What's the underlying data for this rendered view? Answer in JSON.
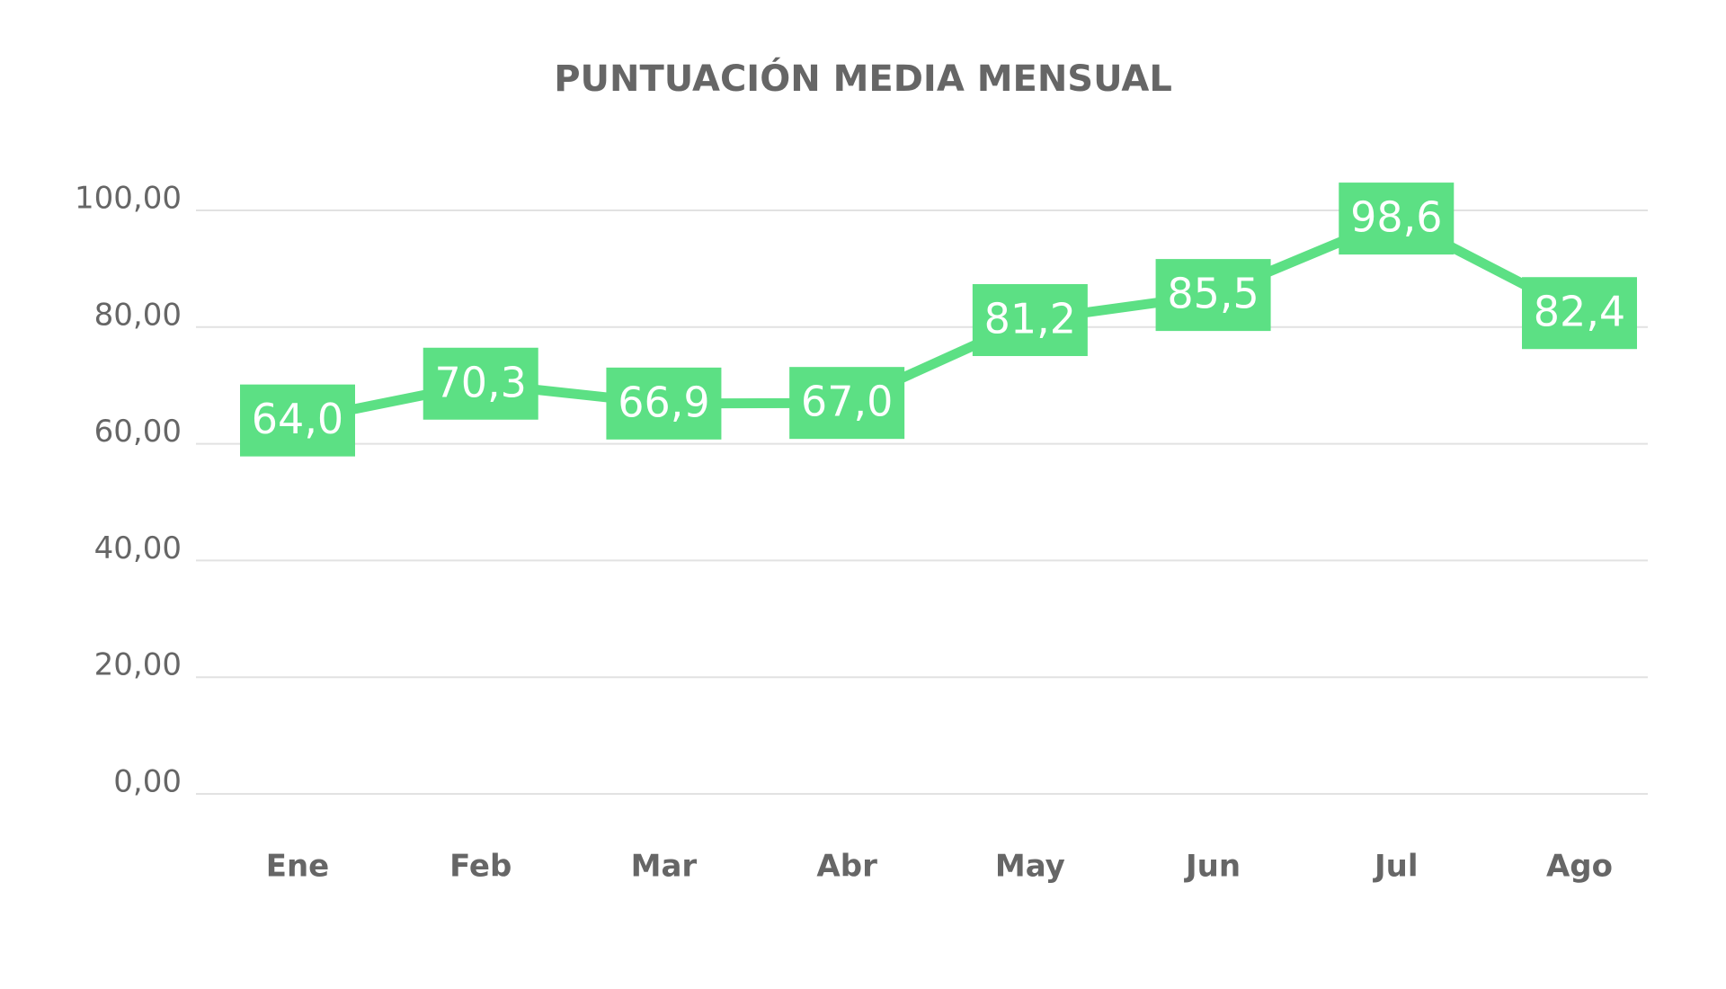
{
  "chart_data": {
    "type": "line",
    "title": "PUNTUACIÓN MEDIA MENSUAL",
    "categories": [
      "Ene",
      "Feb",
      "Mar",
      "Abr",
      "May",
      "Jun",
      "Jul",
      "Ago"
    ],
    "values": [
      64.0,
      70.3,
      66.9,
      67.0,
      81.2,
      85.5,
      98.6,
      82.4
    ],
    "value_labels": [
      "64,0",
      "70,3",
      "66,9",
      "67,0",
      "81,2",
      "85,5",
      "98,6",
      "82,4"
    ],
    "color": "#5ce084",
    "ylim": [
      0,
      100
    ],
    "yticks": [
      {
        "value": 0,
        "label": "0,00"
      },
      {
        "value": 20,
        "label": "20,00"
      },
      {
        "value": 40,
        "label": "40,00"
      },
      {
        "value": 60,
        "label": "60,00"
      },
      {
        "value": 80,
        "label": "80,00"
      },
      {
        "value": 100,
        "label": "100,00"
      }
    ],
    "grid": true
  }
}
